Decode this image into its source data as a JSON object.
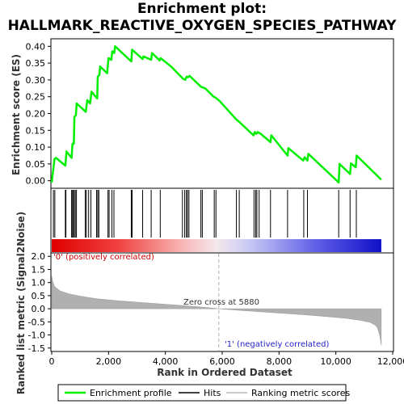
{
  "title_line1": "Enrichment plot:",
  "title_line2": "HALLMARK_REACTIVE_OXYGEN_SPECIES_PATHWAY",
  "chart_data": {
    "type": "line",
    "ylabel_top": "Enrichment score (ES)",
    "ylabel_bottom": "Ranked list metric (Signal2Noise)",
    "xlabel": "Rank in Ordered Dataset",
    "xlim": [
      0,
      12000
    ],
    "x_ticks": [
      "0",
      "2,000",
      "4,000",
      "6,000",
      "8,000",
      "10,000",
      "12,000"
    ],
    "x_tick_values": [
      0,
      2000,
      4000,
      6000,
      8000,
      10000,
      12000
    ],
    "es_ylim": [
      -0.02,
      0.42
    ],
    "es_ticks": [
      "0.00",
      "0.05",
      "0.10",
      "0.15",
      "0.20",
      "0.25",
      "0.30",
      "0.35",
      "0.40"
    ],
    "es_tick_values": [
      0.0,
      0.05,
      0.1,
      0.15,
      0.2,
      0.25,
      0.3,
      0.35,
      0.4
    ],
    "metric_ylim": [
      -1.6,
      2.1
    ],
    "metric_ticks": [
      "2.0",
      "1.5",
      "1.0",
      "0.5",
      "0.0",
      "-0.5",
      "-1.0",
      "-1.5"
    ],
    "metric_tick_values": [
      2.0,
      1.5,
      1.0,
      0.5,
      0.0,
      -0.5,
      -1.0,
      -1.5
    ],
    "series": [
      {
        "name": "Enrichment profile",
        "color": "#00ee00",
        "x": [
          0,
          100,
          150,
          480,
          520,
          700,
          730,
          780,
          800,
          850,
          880,
          1200,
          1250,
          1350,
          1400,
          1600,
          1620,
          1680,
          1700,
          1950,
          2000,
          2100,
          2130,
          2200,
          2230,
          2800,
          2830,
          3200,
          3230,
          3500,
          3530,
          3800,
          3830,
          4200,
          4600,
          4700,
          4750,
          4800,
          4850,
          5250,
          5300,
          5400,
          5700,
          5750,
          5900,
          6200,
          6500,
          6600,
          7100,
          7150,
          7200,
          7250,
          7350,
          7700,
          7730,
          8300,
          8330,
          8850,
          8900,
          9000,
          9030,
          10100,
          10130,
          10500,
          10530,
          10700,
          10730,
          11600
        ],
        "y": [
          -0.005,
          0.065,
          0.068,
          0.045,
          0.087,
          0.068,
          0.11,
          0.11,
          0.19,
          0.195,
          0.23,
          0.205,
          0.24,
          0.23,
          0.265,
          0.245,
          0.31,
          0.315,
          0.34,
          0.32,
          0.365,
          0.36,
          0.385,
          0.38,
          0.4,
          0.355,
          0.39,
          0.362,
          0.37,
          0.36,
          0.38,
          0.358,
          0.365,
          0.34,
          0.305,
          0.3,
          0.31,
          0.308,
          0.312,
          0.28,
          0.278,
          0.275,
          0.25,
          0.248,
          0.238,
          0.21,
          0.182,
          0.175,
          0.135,
          0.145,
          0.14,
          0.145,
          0.14,
          0.115,
          0.135,
          0.075,
          0.097,
          0.06,
          0.07,
          0.06,
          0.08,
          -0.005,
          0.05,
          0.02,
          0.052,
          0.04,
          0.075,
          0.003
        ]
      }
    ],
    "hits_x": [
      60,
      110,
      480,
      500,
      700,
      720,
      760,
      790,
      830,
      870,
      1180,
      1220,
      1300,
      1380,
      1580,
      1620,
      1660,
      1980,
      2020,
      2120,
      2190,
      2800,
      2830,
      3200,
      3500,
      3820,
      4600,
      4680,
      4740,
      4780,
      4830,
      5250,
      5300,
      5720,
      5780,
      6500,
      6600,
      7120,
      7180,
      7220,
      7300,
      7700,
      8300,
      8870,
      9000,
      10100,
      10500,
      10720
    ],
    "metric_curve_x": [
      0,
      30,
      100,
      300,
      600,
      1000,
      1600,
      2400,
      3400,
      4400,
      5200,
      5880,
      6600,
      7400,
      8200,
      9000,
      9800,
      10400,
      10900,
      11200,
      11350,
      11450,
      11500,
      11550,
      11600
    ],
    "metric_curve_y": [
      1.25,
      1.05,
      0.85,
      0.68,
      0.57,
      0.48,
      0.38,
      0.3,
      0.22,
      0.14,
      0.07,
      0.0,
      -0.06,
      -0.12,
      -0.18,
      -0.24,
      -0.31,
      -0.37,
      -0.45,
      -0.52,
      -0.6,
      -0.7,
      -0.85,
      -1.05,
      -1.4
    ],
    "zero_cross_label": "Zero cross at 5880",
    "zero_cross_x": 5880,
    "pos_label": "'0' (positively correlated)",
    "neg_label": "'1' (negatively correlated)",
    "legend": [
      {
        "label": "Enrichment profile",
        "color": "#00ee00"
      },
      {
        "label": "Hits",
        "color": "#000000"
      },
      {
        "label": "Ranking metric scores",
        "color": "#bbbbbb"
      }
    ]
  }
}
